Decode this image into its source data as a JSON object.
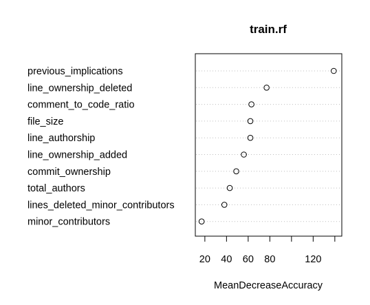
{
  "chart_data": {
    "type": "scatter",
    "title": "train.rf",
    "xlabel": "MeanDecreaseAccuracy",
    "ylabel": "",
    "xlim": [
      15,
      142
    ],
    "x_ticks": [
      20,
      40,
      60,
      80,
      100,
      120,
      140
    ],
    "x_tick_labels": [
      "20",
      "40",
      "60",
      "80",
      "",
      "120",
      ""
    ],
    "grid": "dotted horizontal guide lines",
    "categories": [
      "previous_implications",
      "line_ownership_deleted",
      "comment_to_code_ratio",
      "file_size",
      "line_authorship",
      "line_ownership_added",
      "commit_ownership",
      "total_authors",
      "lines_deleted_minor_contributors",
      "minor_contributors"
    ],
    "values": [
      139,
      77,
      63,
      62,
      62,
      56,
      49,
      43,
      38,
      17
    ]
  }
}
